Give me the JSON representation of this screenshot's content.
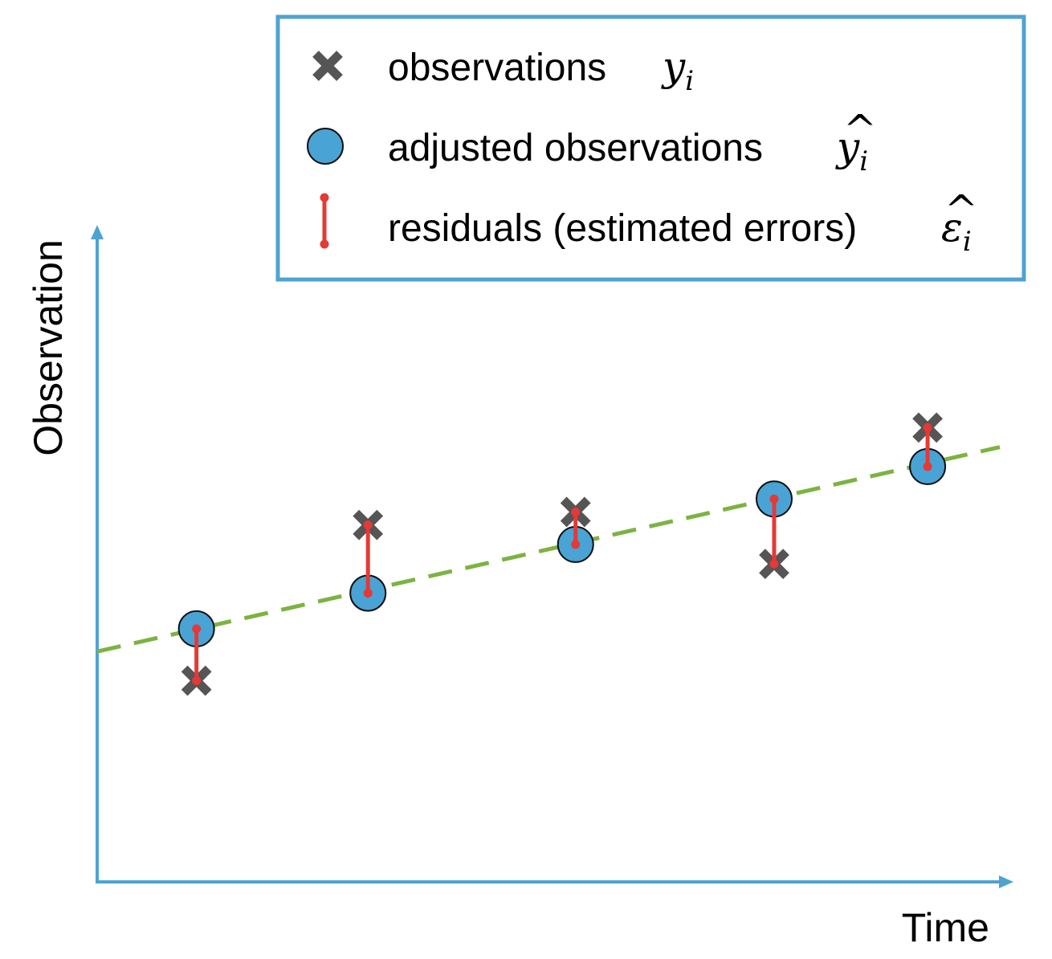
{
  "chart_data": {
    "type": "scatter",
    "xlabel": "Time",
    "ylabel": "Observation",
    "xlim": [
      0,
      10
    ],
    "ylim": [
      0,
      10
    ],
    "grid": false,
    "legend_placement": "top-right",
    "legend": [
      {
        "label": "observations",
        "math": "y",
        "sub": "i",
        "hat": ""
      },
      {
        "label": "adjusted observations",
        "math": "y",
        "sub": "i",
        "hat": "^"
      },
      {
        "label": "residuals (estimated errors)",
        "math": "ε",
        "sub": "i",
        "hat": "^"
      }
    ],
    "fit_line": {
      "x": [
        0,
        10
      ],
      "y": [
        3.55,
        6.7
      ]
    },
    "series": [
      {
        "x": [
          1.1,
          3.0,
          5.3,
          7.5,
          9.2
        ],
        "y": [
          3.1,
          5.5,
          5.7,
          4.9,
          7.0
        ]
      },
      {
        "x": [
          1.1,
          3.0,
          5.3,
          7.5,
          9.2
        ],
        "y": [
          3.9,
          4.45,
          5.2,
          5.9,
          6.4
        ]
      }
    ],
    "colors": {
      "axis": "#4fa3d1",
      "fit_line": "#7cb341",
      "observation": "#555555",
      "adjusted": "#4aa3d5",
      "residual": "#e53935",
      "legend_border": "#4fa3d1"
    }
  }
}
